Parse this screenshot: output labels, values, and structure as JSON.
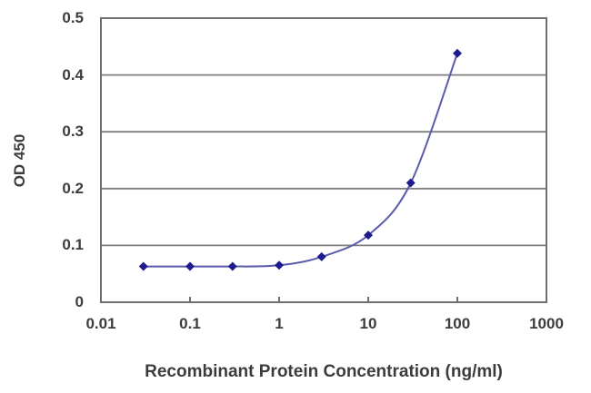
{
  "chart_data": {
    "type": "line",
    "title": "",
    "xlabel": "Recombinant Protein Concentration (ng/ml)",
    "ylabel": "OD 450",
    "x_scale": "log",
    "xlim": [
      0.01,
      1000
    ],
    "ylim": [
      0,
      0.5
    ],
    "grid": "horizontal",
    "legend": "none",
    "x_tick_values": [
      0.01,
      0.1,
      1,
      10,
      100,
      1000
    ],
    "x_tick_labels": [
      "0.01",
      "0.1",
      "1",
      "10",
      "100",
      "1000"
    ],
    "x_minor_tick_values": [
      0.1,
      1,
      10,
      100
    ],
    "y_tick_values": [
      0,
      0.1,
      0.2,
      0.3,
      0.4,
      0.5
    ],
    "y_tick_labels": [
      "0",
      "0.1",
      "0.2",
      "0.3",
      "0.4",
      "0.5"
    ],
    "series": [
      {
        "name": "OD 450",
        "x": [
          0.03,
          0.1,
          0.3,
          1,
          3,
          10,
          30,
          100
        ],
        "y": [
          0.063,
          0.063,
          0.063,
          0.065,
          0.08,
          0.118,
          0.21,
          0.438
        ],
        "marker": "diamond",
        "line_style": "smooth"
      }
    ],
    "colors": {
      "line": "#5b5bab",
      "marker": "#1c1c8e",
      "grid": "#7f7f7f",
      "axis": "#6f6f6f",
      "text": "#3c3c3c",
      "background": "#ffffff"
    }
  }
}
